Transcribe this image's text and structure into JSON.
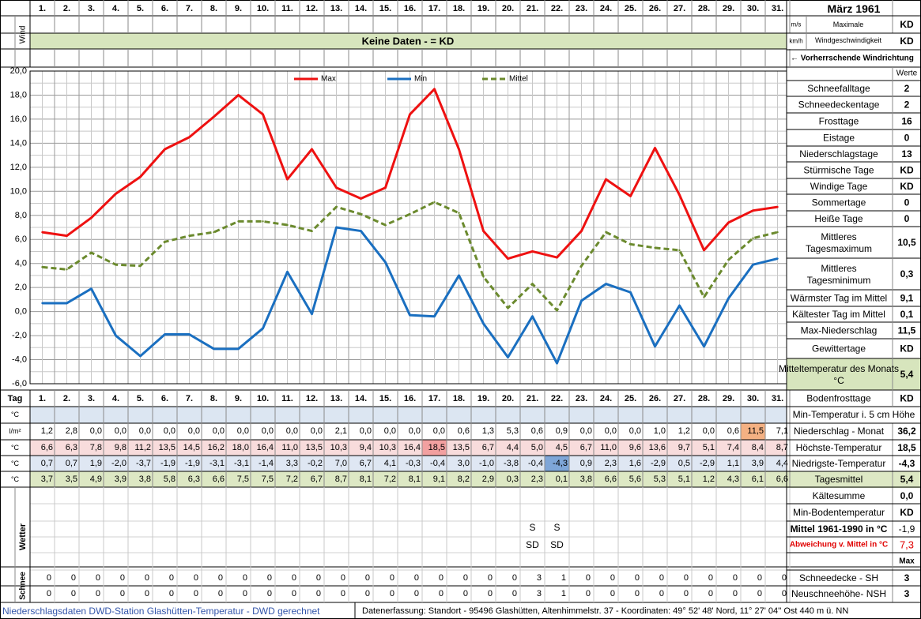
{
  "month_title": "März 1961",
  "day_labels": [
    "1.",
    "2.",
    "3.",
    "4.",
    "5.",
    "6.",
    "7.",
    "8.",
    "9.",
    "10.",
    "11.",
    "12.",
    "13.",
    "14.",
    "15.",
    "16.",
    "17.",
    "18.",
    "19.",
    "20.",
    "21.",
    "22.",
    "23.",
    "24.",
    "25.",
    "26.",
    "27.",
    "28.",
    "29.",
    "30.",
    "31."
  ],
  "wind": {
    "side_label": "Wind",
    "unit_ms": "m/s",
    "unit_kmh": "km/h",
    "banner": "Keine Daten -  = KD",
    "max_label_1": "Maximale",
    "max_label_2": "Windgeschwindigkeit",
    "max_value_ms": "KD",
    "max_value_kmh": "KD",
    "direction_label": "← Vorherrschende Windrichtung"
  },
  "stats_header": "Werte",
  "stats": [
    {
      "label": "Schneefalltage",
      "value": "2"
    },
    {
      "label": "Schneedeckentage",
      "value": "2"
    },
    {
      "label": "Frosttage",
      "value": "16"
    },
    {
      "label": "Eistage",
      "value": "0"
    },
    {
      "label": "Niederschlagstage",
      "value": "13"
    },
    {
      "label": "Stürmische Tage",
      "value": "KD"
    },
    {
      "label": "Windige Tage",
      "value": "KD"
    },
    {
      "label": "Sommertage",
      "value": "0"
    },
    {
      "label": "Heiße Tage",
      "value": "0"
    },
    {
      "label": "Mittleres Tagesmaximum",
      "value": "10,5"
    },
    {
      "label": "Mittleres Tagesminimum",
      "value": "0,3"
    },
    {
      "label": "Wärmster Tag im Mittel",
      "value": "9,1"
    },
    {
      "label": "Kältester Tag im Mittel",
      "value": "0,1"
    },
    {
      "label": "Max-Niederschlag",
      "value": "11,5"
    },
    {
      "label": "Gewittertage",
      "value": "KD"
    },
    {
      "label": "Mitteltemperatur des Monats °C",
      "value": "5,4"
    },
    {
      "label": "Bodenfrosttage",
      "value": "KD"
    }
  ],
  "table": {
    "tag_label": "Tag",
    "row_units": [
      "°C",
      "l/m²",
      "°C",
      "°C",
      "°C"
    ],
    "min5cm_label": "Min-Temperatur i. 5 cm Höhe",
    "summary": [
      {
        "label": "Niederschlag - Monat",
        "value": "36,2"
      },
      {
        "label": "Höchste-Temperatur",
        "value": "18,5"
      },
      {
        "label": "Niedrigste-Temperatur",
        "value": "-4,3"
      },
      {
        "label": "Tagesmittel",
        "value": "5,4"
      }
    ],
    "niederschlag": [
      "1,2",
      "2,8",
      "0,0",
      "0,0",
      "0,0",
      "0,0",
      "0,0",
      "0,0",
      "0,0",
      "0,0",
      "0,0",
      "0,0",
      "2,1",
      "0,0",
      "0,0",
      "0,0",
      "0,0",
      "0,6",
      "1,3",
      "5,3",
      "0,6",
      "0,9",
      "0,0",
      "0,0",
      "0,0",
      "1,0",
      "1,2",
      "0,0",
      "0,6",
      "11,5",
      "7,1"
    ],
    "max": [
      "6,6",
      "6,3",
      "7,8",
      "9,8",
      "11,2",
      "13,5",
      "14,5",
      "16,2",
      "18,0",
      "16,4",
      "11,0",
      "13,5",
      "10,3",
      "9,4",
      "10,3",
      "16,4",
      "18,5",
      "13,5",
      "6,7",
      "4,4",
      "5,0",
      "4,5",
      "6,7",
      "11,0",
      "9,6",
      "13,6",
      "9,7",
      "5,1",
      "7,4",
      "8,4",
      "8,7"
    ],
    "min": [
      "0,7",
      "0,7",
      "1,9",
      "-2,0",
      "-3,7",
      "-1,9",
      "-1,9",
      "-3,1",
      "-3,1",
      "-1,4",
      "3,3",
      "-0,2",
      "7,0",
      "6,7",
      "4,1",
      "-0,3",
      "-0,4",
      "3,0",
      "-1,0",
      "-3,8",
      "-0,4",
      "-4,3",
      "0,9",
      "2,3",
      "1,6",
      "-2,9",
      "0,5",
      "-2,9",
      "1,1",
      "3,9",
      "4,4"
    ],
    "mittel": [
      "3,7",
      "3,5",
      "4,9",
      "3,9",
      "3,8",
      "5,8",
      "6,3",
      "6,6",
      "7,5",
      "7,5",
      "7,2",
      "6,7",
      "8,7",
      "8,1",
      "7,2",
      "8,1",
      "9,1",
      "8,2",
      "2,9",
      "0,3",
      "2,3",
      "0,1",
      "3,8",
      "6,6",
      "5,6",
      "5,3",
      "5,1",
      "1,2",
      "4,3",
      "6,1",
      "6,6"
    ]
  },
  "lower": {
    "kaeltesumme_label": "Kältesumme",
    "kaeltesumme_value": "0,0",
    "min_boden_label": "Min-Bodentemperatur",
    "min_boden_value": "KD",
    "mittel_label": "Mittel 1961-1990 in °C",
    "mittel_value": "-1,9",
    "abweichung_label": "Abweichung v. Mittel in °C",
    "abweichung_value": "7,3",
    "max_header": "Max",
    "wetter_label": "Wetter",
    "schnee_label": "Schnee",
    "wetter_row1": [
      "",
      "",
      "",
      "",
      "",
      "",
      "",
      "",
      "",
      "",
      "",
      "",
      "",
      "",
      "",
      "",
      "",
      "",
      "",
      "",
      "S",
      "S",
      "",
      "",
      "",
      "",
      "",
      "",
      "",
      "",
      ""
    ],
    "wetter_row2": [
      "",
      "",
      "",
      "",
      "",
      "",
      "",
      "",
      "",
      "",
      "",
      "",
      "",
      "",
      "",
      "",
      "",
      "",
      "",
      "",
      "SD",
      "SD",
      "",
      "",
      "",
      "",
      "",
      "",
      "",
      "",
      ""
    ],
    "schneedecke_label": "Schneedecke -  SH",
    "schneedecke_value": "3",
    "neuschnee_label": "Neuschneehöhe- NSH",
    "neuschnee_value": "3",
    "schneedecke": [
      "0",
      "0",
      "0",
      "0",
      "0",
      "0",
      "0",
      "0",
      "0",
      "0",
      "0",
      "0",
      "0",
      "0",
      "0",
      "0",
      "0",
      "0",
      "0",
      "0",
      "3",
      "1",
      "0",
      "0",
      "0",
      "0",
      "0",
      "0",
      "0",
      "0",
      "0"
    ],
    "neuschnee": [
      "0",
      "0",
      "0",
      "0",
      "0",
      "0",
      "0",
      "0",
      "0",
      "0",
      "0",
      "0",
      "0",
      "0",
      "0",
      "0",
      "0",
      "0",
      "0",
      "0",
      "3",
      "1",
      "0",
      "0",
      "0",
      "0",
      "0",
      "0",
      "0",
      "0",
      "0"
    ]
  },
  "footer": {
    "left": "Niederschlagsdaten DWD-Station Glashütten-Temperatur -  DWD gerechnet",
    "right": "Datenerfassung: Standort -  95496  Glashütten, Altenhimmelstr. 37 - Koordinaten:  49° 52' 48' Nord,  11° 27' 04'' Ost  440 m ü. NN"
  },
  "colors": {
    "max_line": "#ee1111",
    "min_line": "#1a6fc0",
    "mittel_line": "#6b8a2e",
    "max_row_bg": "#f8dcdc",
    "max_highlight": "#f2a0a0",
    "min_row_bg": "#dfe7f3",
    "min_highlight": "#7ea6d8",
    "mittel_row_bg": "#dde8c4",
    "wind_banner_bg": "#d7e5bd",
    "niederschlag_highlight": "#f4b183",
    "min5cm_row_bg": "#dce6f2",
    "abweichung_text": "#e00000",
    "footer_left_text": "#3355aa"
  },
  "chart_data": {
    "type": "line",
    "x": [
      1,
      2,
      3,
      4,
      5,
      6,
      7,
      8,
      9,
      10,
      11,
      12,
      13,
      14,
      15,
      16,
      17,
      18,
      19,
      20,
      21,
      22,
      23,
      24,
      25,
      26,
      27,
      28,
      29,
      30,
      31
    ],
    "ylim": [
      -6,
      20
    ],
    "yticks": [
      "20,0",
      "18,0",
      "16,0",
      "14,0",
      "12,0",
      "10,0",
      "8,0",
      "6,0",
      "4,0",
      "2,0",
      "0,0",
      "-2,0",
      "-4,0",
      "-6,0"
    ],
    "grid": true,
    "legend_position": "top",
    "series": [
      {
        "name": "Max",
        "style": "solid",
        "values": [
          6.6,
          6.3,
          7.8,
          9.8,
          11.2,
          13.5,
          14.5,
          16.2,
          18.0,
          16.4,
          11.0,
          13.5,
          10.3,
          9.4,
          10.3,
          16.4,
          18.5,
          13.5,
          6.7,
          4.4,
          5.0,
          4.5,
          6.7,
          11.0,
          9.6,
          13.6,
          9.7,
          5.1,
          7.4,
          8.4,
          8.7
        ]
      },
      {
        "name": "Min",
        "style": "solid",
        "values": [
          0.7,
          0.7,
          1.9,
          -2.0,
          -3.7,
          -1.9,
          -1.9,
          -3.1,
          -3.1,
          -1.4,
          3.3,
          -0.2,
          7.0,
          6.7,
          4.1,
          -0.3,
          -0.4,
          3.0,
          -1.0,
          -3.8,
          -0.4,
          -4.3,
          0.9,
          2.3,
          1.6,
          -2.9,
          0.5,
          -2.9,
          1.1,
          3.9,
          4.4
        ]
      },
      {
        "name": "Mittel",
        "style": "dashed",
        "values": [
          3.7,
          3.5,
          4.9,
          3.9,
          3.8,
          5.8,
          6.3,
          6.6,
          7.5,
          7.5,
          7.2,
          6.7,
          8.7,
          8.1,
          7.2,
          8.1,
          9.1,
          8.2,
          2.9,
          0.3,
          2.3,
          0.1,
          3.8,
          6.6,
          5.6,
          5.3,
          5.1,
          1.2,
          4.3,
          6.1,
          6.6
        ]
      }
    ]
  }
}
